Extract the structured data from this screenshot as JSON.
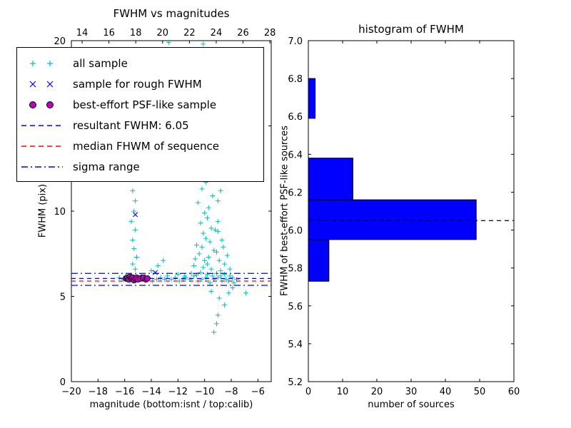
{
  "chart_data": [
    {
      "type": "scatter",
      "title": "FWHM vs magnitudes",
      "xlabel": "magnitude (bottom:isnt / top:calib)",
      "ylabel": "FWHM (pix)",
      "xlim": [
        -20,
        -5
      ],
      "ylim": [
        0,
        20
      ],
      "top_xlim": [
        13.2,
        28.1
      ],
      "x_ticks": [
        -20,
        -18,
        -16,
        -14,
        -12,
        -10,
        -8,
        -6
      ],
      "x_tick_labels": [
        "−20",
        "−18",
        "−16",
        "−14",
        "−12",
        "−10",
        "−8",
        "−6"
      ],
      "top_x_ticks": [
        14,
        16,
        18,
        20,
        22,
        24,
        26,
        28
      ],
      "top_x_tick_labels": [
        "14",
        "16",
        "18",
        "20",
        "22",
        "24",
        "26",
        "28"
      ],
      "y_ticks": [
        0,
        5,
        10,
        15,
        20
      ],
      "y_tick_labels": [
        "0",
        "5",
        "10",
        "15",
        "20"
      ],
      "series": [
        {
          "name": "all sample",
          "marker": "plus",
          "color": "#00bfbf",
          "points": [
            [
              -16.4,
              6.1
            ],
            [
              -16.1,
              6.0
            ],
            [
              -15.9,
              6.2
            ],
            [
              -15.6,
              5.9
            ],
            [
              -15.3,
              6.1
            ],
            [
              -15.0,
              6.0
            ],
            [
              -14.8,
              6.2
            ],
            [
              -14.5,
              6.0
            ],
            [
              -14.2,
              6.1
            ],
            [
              -13.9,
              5.9
            ],
            [
              -13.6,
              6.0
            ],
            [
              -13.3,
              6.1
            ],
            [
              -13.0,
              6.0
            ],
            [
              -12.8,
              6.2
            ],
            [
              -12.5,
              6.0
            ],
            [
              -12.2,
              6.1
            ],
            [
              -11.9,
              5.9
            ],
            [
              -11.6,
              6.0
            ],
            [
              -11.4,
              6.1
            ],
            [
              -11.1,
              6.0
            ],
            [
              -10.8,
              6.2
            ],
            [
              -10.5,
              5.9
            ],
            [
              -10.2,
              6.0
            ],
            [
              -9.9,
              6.1
            ],
            [
              -9.6,
              5.8
            ],
            [
              -9.3,
              6.0
            ],
            [
              -9.0,
              6.1
            ],
            [
              -8.7,
              5.9
            ],
            [
              -8.4,
              6.0
            ],
            [
              -8.1,
              6.2
            ],
            [
              -7.8,
              5.8
            ],
            [
              -7.6,
              6.0
            ],
            [
              -12.0,
              6.3
            ],
            [
              -11.5,
              6.2
            ],
            [
              -11.0,
              6.35
            ],
            [
              -10.6,
              6.25
            ],
            [
              -10.3,
              6.4
            ],
            [
              -9.8,
              6.3
            ],
            [
              -9.4,
              6.2
            ],
            [
              -9.1,
              6.35
            ],
            [
              -8.8,
              6.2
            ],
            [
              -8.5,
              6.3
            ],
            [
              -8.2,
              5.9
            ],
            [
              -7.9,
              6.1
            ],
            [
              -10.1,
              19.8
            ],
            [
              -9.8,
              19.2
            ],
            [
              -10.3,
              18.7
            ],
            [
              -9.6,
              18.1
            ],
            [
              -10.0,
              17.5
            ],
            [
              -9.9,
              16.9
            ],
            [
              -10.2,
              16.3
            ],
            [
              -9.7,
              15.8
            ],
            [
              -10.4,
              15.2
            ],
            [
              -9.5,
              14.7
            ],
            [
              -10.1,
              14.1
            ],
            [
              -9.8,
              13.6
            ],
            [
              -10.0,
              13.0
            ],
            [
              -10.3,
              12.5
            ],
            [
              -9.6,
              12.1
            ],
            [
              -9.9,
              11.7
            ],
            [
              -10.2,
              11.3
            ],
            [
              -9.4,
              10.9
            ],
            [
              -10.5,
              10.5
            ],
            [
              -9.7,
              10.2
            ],
            [
              -10.0,
              9.9
            ],
            [
              -9.8,
              9.6
            ],
            [
              -10.3,
              9.3
            ],
            [
              -9.5,
              9.0
            ],
            [
              -10.1,
              8.7
            ],
            [
              -9.9,
              8.4
            ],
            [
              -9.6,
              8.2
            ],
            [
              -10.2,
              7.9
            ],
            [
              -9.3,
              7.7
            ],
            [
              -10.4,
              7.5
            ],
            [
              -9.7,
              7.3
            ],
            [
              -10.0,
              7.1
            ],
            [
              -9.8,
              6.9
            ],
            [
              -10.1,
              6.7
            ],
            [
              -9.5,
              6.6
            ],
            [
              -10.6,
              8.0
            ],
            [
              -10.7,
              7.2
            ],
            [
              -10.8,
              6.8
            ],
            [
              -9.2,
              8.9
            ],
            [
              -9.0,
              9.4
            ],
            [
              -9.0,
              15.5
            ],
            [
              -8.9,
              13.8
            ],
            [
              -9.1,
              12.4
            ],
            [
              -8.8,
              11.2
            ],
            [
              -9.0,
              10.6
            ],
            [
              -8.8,
              6.5
            ],
            [
              -8.5,
              6.9
            ],
            [
              -8.3,
              7.4
            ],
            [
              -8.6,
              7.9
            ],
            [
              -8.1,
              6.6
            ],
            [
              -8.9,
              7.1
            ],
            [
              -9.1,
              7.6
            ],
            [
              -8.7,
              8.3
            ],
            [
              -9.0,
              8.8
            ],
            [
              -8.9,
              4.9
            ],
            [
              -8.5,
              4.5
            ],
            [
              -9.0,
              3.9
            ],
            [
              -8.2,
              5.2
            ],
            [
              -7.9,
              5.5
            ],
            [
              -9.5,
              5.3
            ],
            [
              -9.3,
              2.9
            ],
            [
              -6.9,
              5.2
            ],
            [
              -9.1,
              3.4
            ],
            [
              -15.3,
              11.9
            ],
            [
              -15.4,
              11.2
            ],
            [
              -15.2,
              10.6
            ],
            [
              -15.3,
              10.0
            ],
            [
              -15.5,
              9.4
            ],
            [
              -15.2,
              8.9
            ],
            [
              -15.4,
              8.3
            ],
            [
              -15.3,
              7.8
            ],
            [
              -15.1,
              7.3
            ],
            [
              -15.4,
              6.9
            ],
            [
              -15.2,
              6.6
            ],
            [
              -12.7,
              19.9
            ],
            [
              -12.5,
              19.4
            ],
            [
              -12.8,
              18.8
            ],
            [
              -12.6,
              17.8
            ],
            [
              -12.4,
              18.2
            ],
            [
              -13.5,
              6.8
            ],
            [
              -13.1,
              7.1
            ],
            [
              -14.0,
              6.5
            ]
          ]
        },
        {
          "name": "sample for rough FWHM",
          "marker": "x",
          "color": "#0000ff",
          "points": [
            [
              -15.2,
              9.8
            ],
            [
              -13.7,
              6.4
            ],
            [
              -15.5,
              6.1
            ],
            [
              -15.0,
              6.05
            ],
            [
              -14.6,
              6.15
            ]
          ]
        },
        {
          "name": "best-effort PSF-like sample",
          "marker": "circle",
          "color": "#bf00bf",
          "edge": "#000000",
          "points": [
            [
              -15.9,
              6.05
            ],
            [
              -15.8,
              6.1
            ],
            [
              -15.7,
              6.0
            ],
            [
              -15.6,
              6.15
            ],
            [
              -15.5,
              6.05
            ],
            [
              -15.4,
              6.1
            ],
            [
              -15.3,
              5.95
            ],
            [
              -15.2,
              6.05
            ],
            [
              -15.1,
              6.1
            ],
            [
              -15.0,
              6.0
            ],
            [
              -14.8,
              6.05
            ],
            [
              -14.6,
              6.1
            ],
            [
              -14.4,
              6.0
            ],
            [
              -14.3,
              6.05
            ]
          ]
        }
      ],
      "hlines": [
        {
          "name": "sigma range upper",
          "y": 6.35,
          "color": "#0000ff",
          "style": "dashdot"
        },
        {
          "name": "resultant FWHM",
          "y": 6.05,
          "color": "#0000ff",
          "style": "dashed"
        },
        {
          "name": "median FHWM of sequence",
          "y": 5.9,
          "color": "#ff0000",
          "style": "dashed"
        },
        {
          "name": "sigma range lower",
          "y": 5.65,
          "color": "#0000ff",
          "style": "dashdot"
        }
      ],
      "legend": [
        {
          "label": "all sample",
          "type": "marker",
          "marker": "plus",
          "color": "#00bfbf"
        },
        {
          "label": "sample for rough FWHM",
          "type": "marker",
          "marker": "x",
          "color": "#0000ff"
        },
        {
          "label": "best-effort PSF-like sample",
          "type": "marker",
          "marker": "circle",
          "color": "#bf00bf",
          "edge": "#000000"
        },
        {
          "label": "resultant FWHM: 6.05",
          "type": "line",
          "style": "dashed",
          "color": "#0000ff"
        },
        {
          "label": "median FHWM of sequence",
          "type": "line",
          "style": "dashed",
          "color": "#ff0000"
        },
        {
          "label": "sigma range",
          "type": "line",
          "style": "dashdot",
          "color": "#0000ff"
        }
      ],
      "resultant_fwhm": 6.05
    },
    {
      "type": "bar",
      "orientation": "horizontal",
      "title": "histogram of FWHM",
      "xlabel": "number of sources",
      "ylabel": "FWHM of best-effort PSF-like sources",
      "xlim": [
        0,
        60
      ],
      "ylim": [
        5.2,
        7.0
      ],
      "x_ticks": [
        0,
        10,
        20,
        30,
        40,
        50,
        60
      ],
      "x_tick_labels": [
        "0",
        "10",
        "20",
        "30",
        "40",
        "50",
        "60"
      ],
      "y_ticks": [
        5.2,
        5.4,
        5.6,
        5.8,
        6.0,
        6.2,
        6.4,
        6.6,
        6.8,
        7.0
      ],
      "y_tick_labels": [
        "5.2",
        "5.4",
        "5.6",
        "5.8",
        "6.0",
        "6.2",
        "6.4",
        "6.6",
        "6.8",
        "7.0"
      ],
      "bin_edges": [
        5.73,
        5.95,
        6.16,
        6.38,
        6.59,
        6.8
      ],
      "counts": [
        6,
        49,
        13,
        0,
        2
      ],
      "bar_color": "#0000ff",
      "bar_edge_color": "#000000",
      "dashed_line_y": 6.05,
      "dashed_line_color": "#000000"
    }
  ]
}
